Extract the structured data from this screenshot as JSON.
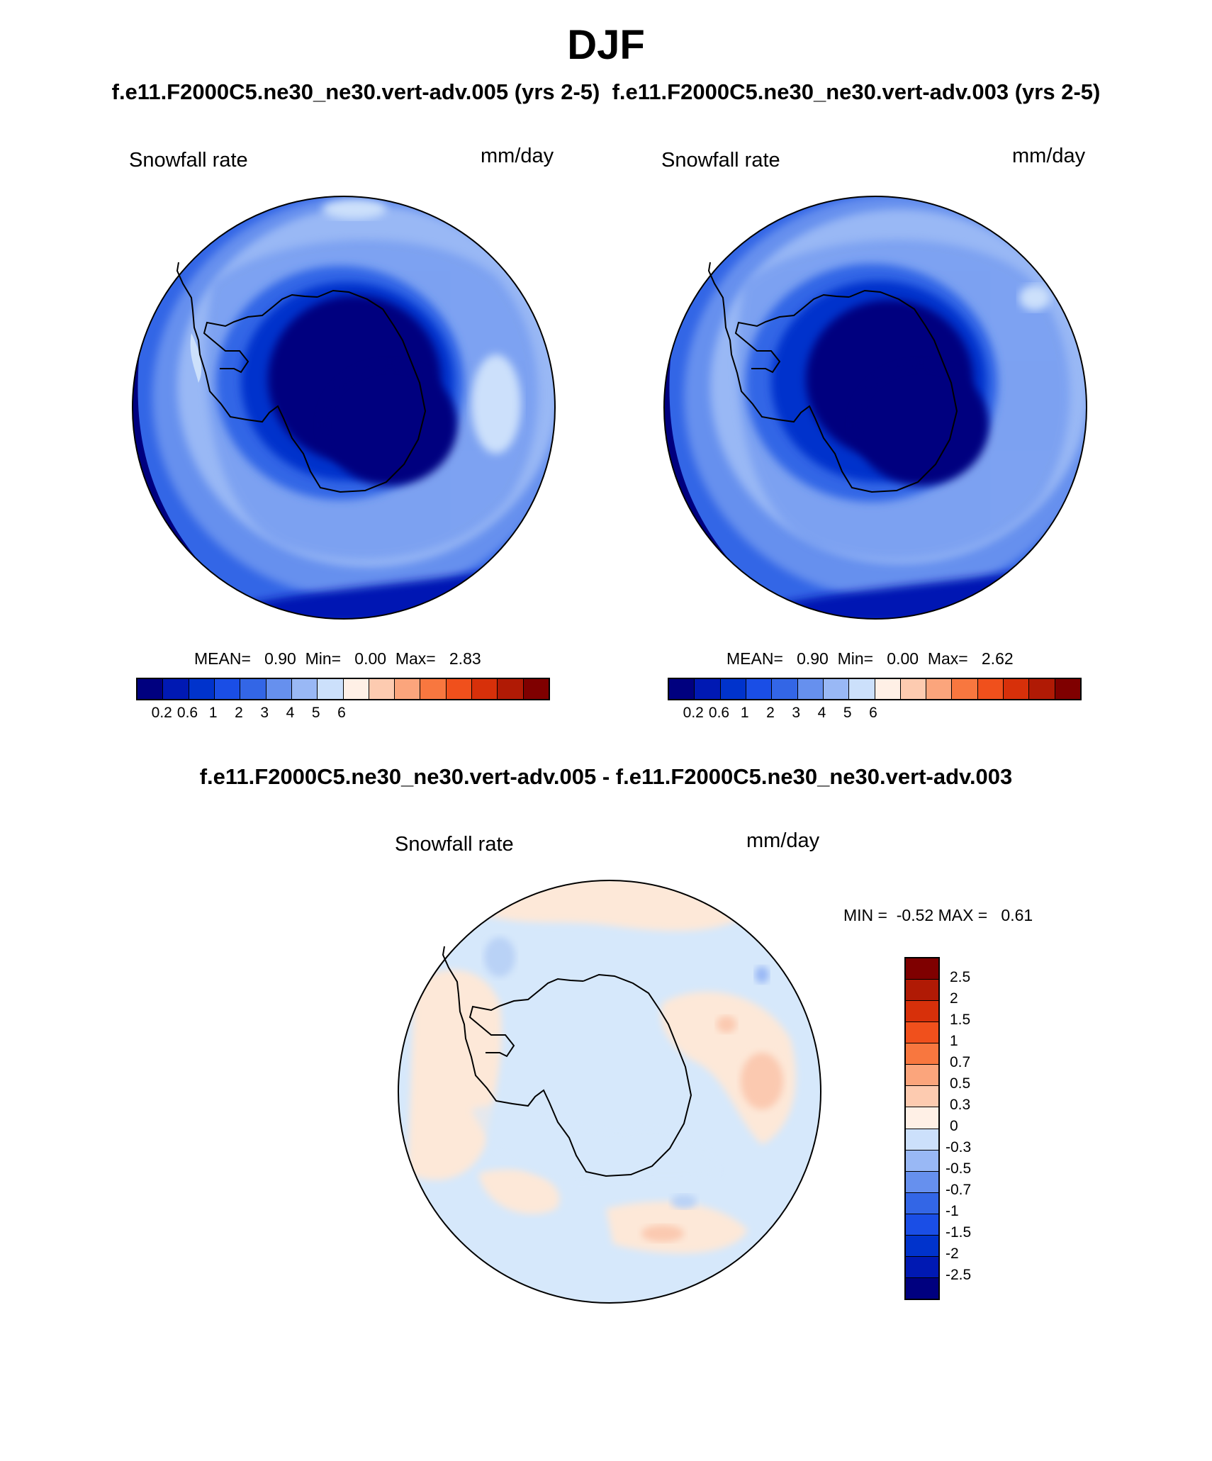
{
  "title": "DJF",
  "subtitle_left": "f.e11.F2000C5.ne30_ne30.vert-adv.005 (yrs 2-5)",
  "subtitle_right": "f.e11.F2000C5.ne30_ne30.vert-adv.003 (yrs 2-5)",
  "diff_title": "f.e11.F2000C5.ne30_ne30.vert-adv.005 - f.e11.F2000C5.ne30_ne30.vert-adv.003",
  "colors": {
    "abs_scale": [
      "#00007f",
      "#0019b3",
      "#0033cc",
      "#1a4ee6",
      "#3366e6",
      "#6690ee",
      "#99b8f5",
      "#cce0fb",
      "#fff0e6",
      "#fdcbb0",
      "#fba57c",
      "#f8773f",
      "#f0501c",
      "#d7300a",
      "#b01a05",
      "#7f0000"
    ],
    "diff_scale": [
      "#00007f",
      "#0019b3",
      "#0033cc",
      "#1a4ee6",
      "#3366e6",
      "#6690ee",
      "#99b8f5",
      "#cce0fb",
      "#fff0e6",
      "#fdcbb0",
      "#fba57c",
      "#f8773f",
      "#f0501c",
      "#d7300a",
      "#b01a05",
      "#7f0000"
    ],
    "coast": "#000000"
  },
  "panels": [
    {
      "var_label": "Snowfall rate",
      "units": "mm/day",
      "mean_label": "MEAN=",
      "mean_value": "0.90",
      "min_label": "Min=",
      "min_value": "0.00",
      "max_label": "Max=",
      "max_value": "2.83"
    },
    {
      "var_label": "Snowfall rate",
      "units": "mm/day",
      "mean_label": "MEAN=",
      "mean_value": "0.90",
      "min_label": "Min=",
      "min_value": "0.00",
      "max_label": "Max=",
      "max_value": "2.62"
    }
  ],
  "abs_ticks": [
    "0.2",
    "0.6",
    "1",
    "2",
    "3",
    "4",
    "5",
    "6"
  ],
  "diff_panel": {
    "var_label": "Snowfall rate",
    "units": "mm/day",
    "minmax_label": "MIN =  -0.52 MAX =   0.61"
  },
  "diff_ticks": [
    "2.5",
    "2",
    "1.5",
    "1",
    "0.7",
    "0.5",
    "0.3",
    "0",
    "-0.3",
    "-0.5",
    "-0.7",
    "-1",
    "-1.5",
    "-2",
    "-2.5"
  ]
}
